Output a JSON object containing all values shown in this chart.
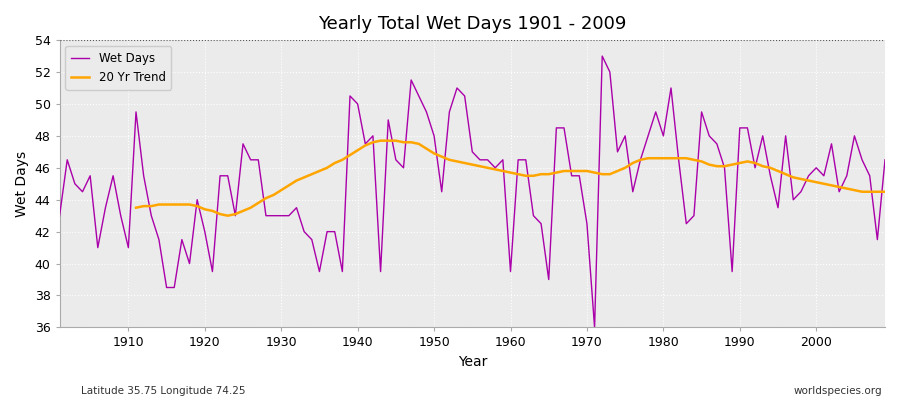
{
  "title": "Yearly Total Wet Days 1901 - 2009",
  "xlabel": "Year",
  "ylabel": "Wet Days",
  "footnote_left": "Latitude 35.75 Longitude 74.25",
  "footnote_right": "worldspecies.org",
  "ylim": [
    36,
    54
  ],
  "yticks": [
    36,
    38,
    40,
    42,
    44,
    46,
    48,
    50,
    52,
    54
  ],
  "bg_color": "#ffffff",
  "plot_bg_color": "#ebebeb",
  "wet_days_color": "#aa00aa",
  "trend_color": "#ffa500",
  "wet_days_label": "Wet Days",
  "trend_label": "20 Yr Trend",
  "years": [
    1901,
    1902,
    1903,
    1904,
    1905,
    1906,
    1907,
    1908,
    1909,
    1910,
    1911,
    1912,
    1913,
    1914,
    1915,
    1916,
    1917,
    1918,
    1919,
    1920,
    1921,
    1922,
    1923,
    1924,
    1925,
    1926,
    1927,
    1928,
    1929,
    1930,
    1931,
    1932,
    1933,
    1934,
    1935,
    1936,
    1937,
    1938,
    1939,
    1940,
    1941,
    1942,
    1943,
    1944,
    1945,
    1946,
    1947,
    1948,
    1949,
    1950,
    1951,
    1952,
    1953,
    1954,
    1955,
    1956,
    1957,
    1958,
    1959,
    1960,
    1961,
    1962,
    1963,
    1964,
    1965,
    1966,
    1967,
    1968,
    1969,
    1970,
    1971,
    1972,
    1973,
    1974,
    1975,
    1976,
    1977,
    1978,
    1979,
    1980,
    1981,
    1982,
    1983,
    1984,
    1985,
    1986,
    1987,
    1988,
    1989,
    1990,
    1991,
    1992,
    1993,
    1994,
    1995,
    1996,
    1997,
    1998,
    1999,
    2000,
    2001,
    2002,
    2003,
    2004,
    2005,
    2006,
    2007,
    2008,
    2009
  ],
  "wet_days": [
    43.0,
    46.5,
    45.0,
    44.5,
    45.5,
    41.0,
    43.5,
    45.5,
    43.0,
    41.0,
    49.5,
    45.5,
    43.0,
    41.5,
    38.5,
    38.5,
    41.5,
    40.0,
    44.0,
    42.0,
    39.5,
    45.5,
    45.5,
    43.0,
    47.5,
    46.5,
    46.5,
    43.0,
    43.0,
    43.0,
    43.0,
    43.5,
    42.0,
    41.5,
    39.5,
    42.0,
    42.0,
    39.5,
    50.5,
    50.0,
    47.5,
    48.0,
    39.5,
    49.0,
    46.5,
    46.0,
    51.5,
    50.5,
    49.5,
    48.0,
    44.5,
    49.5,
    51.0,
    50.5,
    47.0,
    46.5,
    46.5,
    46.0,
    46.5,
    39.5,
    46.5,
    46.5,
    43.0,
    42.5,
    39.0,
    48.5,
    48.5,
    45.5,
    45.5,
    42.5,
    36.0,
    53.0,
    52.0,
    47.0,
    48.0,
    44.5,
    46.5,
    48.0,
    49.5,
    48.0,
    51.0,
    46.5,
    42.5,
    43.0,
    49.5,
    48.0,
    47.5,
    46.0,
    39.5,
    48.5,
    48.5,
    46.0,
    48.0,
    45.5,
    43.5,
    48.0,
    44.0,
    44.5,
    45.5,
    46.0,
    45.5,
    47.5,
    44.5,
    45.5,
    48.0,
    46.5,
    45.5,
    41.5,
    46.5
  ],
  "trend_years": [
    1911,
    1912,
    1913,
    1914,
    1915,
    1916,
    1917,
    1918,
    1919,
    1920,
    1921,
    1922,
    1923,
    1924,
    1925,
    1926,
    1927,
    1928,
    1929,
    1930,
    1931,
    1932,
    1933,
    1934,
    1935,
    1936,
    1937,
    1938,
    1939,
    1940,
    1941,
    1942,
    1943,
    1944,
    1945,
    1946,
    1947,
    1948,
    1949,
    1950,
    1951,
    1952,
    1953,
    1954,
    1955,
    1956,
    1957,
    1958,
    1959,
    1960,
    1961,
    1962,
    1963,
    1964,
    1965,
    1966,
    1967,
    1968,
    1969,
    1970,
    1971,
    1972,
    1973,
    1974,
    1975,
    1976,
    1977,
    1978,
    1979,
    1980,
    1981,
    1982,
    1983,
    1984,
    1985,
    1986,
    1987,
    1988,
    1989,
    1990,
    1991,
    1992,
    1993,
    1994,
    1995,
    1996,
    1997,
    1998,
    1999,
    2000,
    2001,
    2002,
    2003,
    2004,
    2005,
    2006,
    2007,
    2008,
    2009
  ],
  "trend_values": [
    43.5,
    43.6,
    43.6,
    43.7,
    43.7,
    43.7,
    43.7,
    43.7,
    43.6,
    43.4,
    43.3,
    43.1,
    43.0,
    43.1,
    43.3,
    43.5,
    43.8,
    44.1,
    44.3,
    44.6,
    44.9,
    45.2,
    45.4,
    45.6,
    45.8,
    46.0,
    46.3,
    46.5,
    46.8,
    47.1,
    47.4,
    47.6,
    47.7,
    47.7,
    47.7,
    47.6,
    47.6,
    47.5,
    47.2,
    46.9,
    46.7,
    46.5,
    46.4,
    46.3,
    46.2,
    46.1,
    46.0,
    45.9,
    45.8,
    45.7,
    45.6,
    45.5,
    45.5,
    45.6,
    45.6,
    45.7,
    45.8,
    45.8,
    45.8,
    45.8,
    45.7,
    45.6,
    45.6,
    45.8,
    46.0,
    46.3,
    46.5,
    46.6,
    46.6,
    46.6,
    46.6,
    46.6,
    46.6,
    46.5,
    46.4,
    46.2,
    46.1,
    46.1,
    46.2,
    46.3,
    46.4,
    46.3,
    46.1,
    46.0,
    45.8,
    45.6,
    45.4,
    45.3,
    45.2,
    45.1,
    45.0,
    44.9,
    44.8,
    44.7,
    44.6,
    44.5,
    44.5,
    44.5,
    44.5
  ]
}
